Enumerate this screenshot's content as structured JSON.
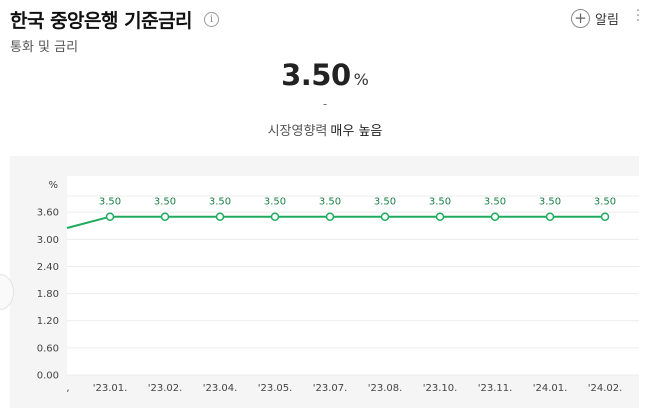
{
  "header": {
    "title": "한국 중앙은행 기준금리",
    "info_icon": "i",
    "subtitle": "통화 및 금리",
    "alarm_label": "알림",
    "alarm_icon": "+",
    "more_icon": "⋮"
  },
  "summary": {
    "value": "3.50",
    "unit": "%",
    "change": "-",
    "market_impact_label": "시장영향력",
    "market_impact_level": "매우 높음"
  },
  "chart_data": {
    "type": "line",
    "ylabel": "%",
    "y_ticks": [
      "0.00",
      "0.60",
      "1.20",
      "1.80",
      "2.40",
      "3.00",
      "3.60"
    ],
    "y_tick_values": [
      0,
      0.6,
      1.2,
      1.8,
      2.4,
      3.0,
      3.6
    ],
    "ylim": [
      0,
      4.4
    ],
    "categories": [
      "'23.01.",
      "'23.02.",
      "'23.04.",
      "'23.05.",
      "'23.07.",
      "'23.08.",
      "'23.10.",
      "'23.11.",
      "'24.01.",
      "'24.02."
    ],
    "leading_value": 3.25,
    "values": [
      3.5,
      3.5,
      3.5,
      3.5,
      3.5,
      3.5,
      3.5,
      3.5,
      3.5,
      3.5
    ],
    "data_labels": [
      "3.50",
      "3.50",
      "3.50",
      "3.50",
      "3.50",
      "3.50",
      "3.50",
      "3.50",
      "3.50",
      "3.50"
    ],
    "line_color": "#1fab5e",
    "grid": true
  }
}
